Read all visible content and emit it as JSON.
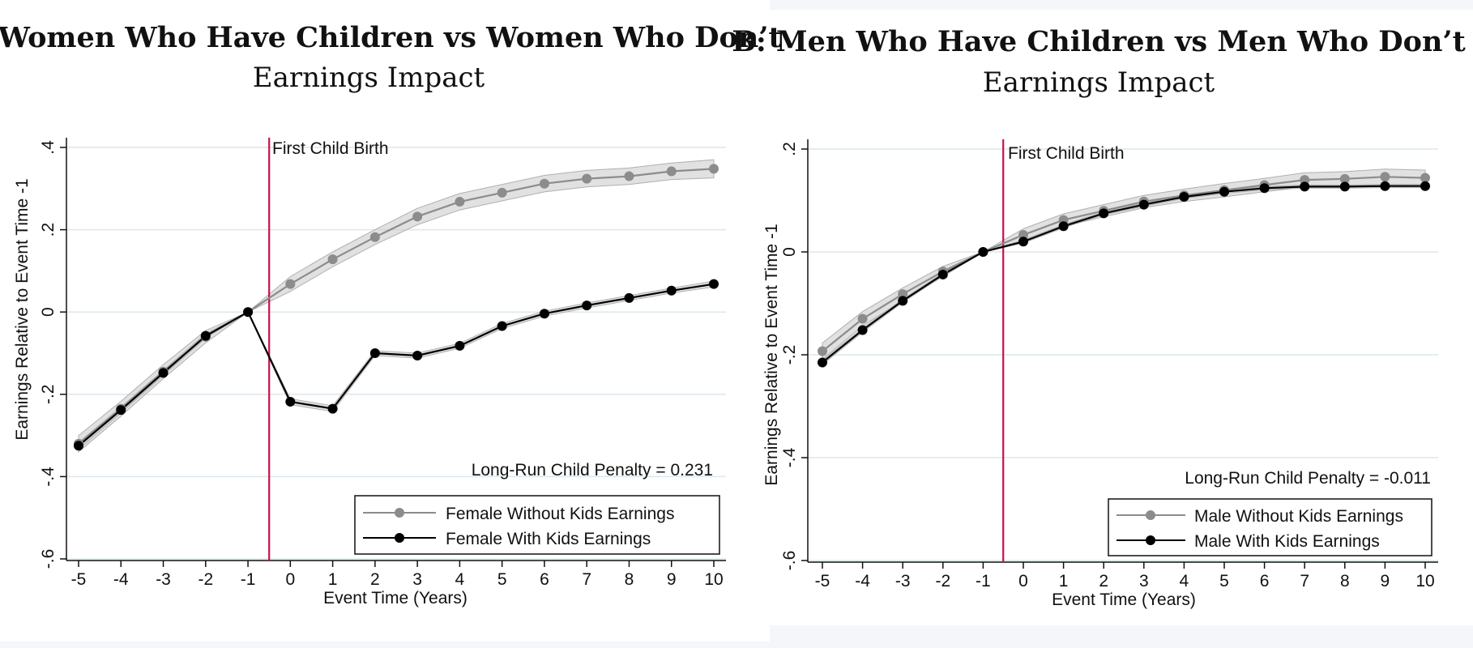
{
  "colors": {
    "event_line": "#c8104e",
    "without_kids": "#8c8c8c",
    "with_kids": "#000000",
    "band": "#c8c8c8"
  },
  "chart_data": [
    {
      "type": "line",
      "title": "A: Women Who Have Children vs Women Who Don’t",
      "subtitle": "Earnings Impact",
      "xlabel": "Event Time (Years)",
      "ylabel": "Earnings Relative to Event Time -1",
      "x": [
        -5,
        -4,
        -3,
        -2,
        -1,
        0,
        1,
        2,
        3,
        4,
        5,
        6,
        7,
        8,
        9,
        10
      ],
      "xticks": [
        "-5",
        "-4",
        "-3",
        "-2",
        "-1",
        "0",
        "1",
        "2",
        "3",
        "4",
        "5",
        "6",
        "7",
        "8",
        "9",
        "10"
      ],
      "yticks": [
        ".4",
        ".2",
        "0",
        "-.2",
        "-.4",
        "-.6"
      ],
      "ytick_values": [
        0.4,
        0.2,
        0,
        -0.2,
        -0.4,
        -0.6
      ],
      "xlim": [
        -5,
        10
      ],
      "ylim": [
        -0.6,
        0.4
      ],
      "grid": true,
      "event_line_x": -0.5,
      "event_line_label": "First Child Birth",
      "annotation": "Long-Run Child Penalty = 0.231",
      "legend_position": "bottom-right",
      "series": [
        {
          "name": "Female Without Kids Earnings",
          "color": "#8c8c8c",
          "values": [
            -0.32,
            -0.235,
            -0.145,
            -0.06,
            0,
            0.068,
            0.128,
            0.182,
            0.232,
            0.268,
            0.29,
            0.312,
            0.324,
            0.33,
            0.342,
            0.348
          ],
          "band_halfwidth": [
            0.02,
            0.018,
            0.017,
            0.015,
            0,
            0.018,
            0.018,
            0.018,
            0.02,
            0.02,
            0.02,
            0.02,
            0.02,
            0.02,
            0.02,
            0.022
          ]
        },
        {
          "name": "Female With Kids Earnings",
          "color": "#000000",
          "values": [
            -0.325,
            -0.238,
            -0.148,
            -0.058,
            0,
            -0.218,
            -0.235,
            -0.1,
            -0.106,
            -0.082,
            -0.034,
            -0.004,
            0.016,
            0.034,
            0.052,
            0.068
          ],
          "band_halfwidth": [
            0.008,
            0.007,
            0.006,
            0.005,
            0,
            0.007,
            0.007,
            0.006,
            0.006,
            0.006,
            0.006,
            0.006,
            0.006,
            0.006,
            0.006,
            0.007
          ]
        }
      ]
    },
    {
      "type": "line",
      "title": "B: Men Who Have Children vs Men Who Don’t",
      "subtitle": "Earnings Impact",
      "xlabel": "Event Time (Years)",
      "ylabel": "Earnings Relative to Event Time -1",
      "x": [
        -5,
        -4,
        -3,
        -2,
        -1,
        0,
        1,
        2,
        3,
        4,
        5,
        6,
        7,
        8,
        9,
        10
      ],
      "xticks": [
        "-5",
        "-4",
        "-3",
        "-2",
        "-1",
        "0",
        "1",
        "2",
        "3",
        "4",
        "5",
        "6",
        "7",
        "8",
        "9",
        "10"
      ],
      "yticks": [
        ".2",
        "0",
        "-.2",
        "-.4",
        "-.6"
      ],
      "ytick_values": [
        0.2,
        0,
        -0.2,
        -0.4,
        -0.6
      ],
      "xlim": [
        -5,
        10
      ],
      "ylim": [
        -0.6,
        0.2
      ],
      "grid": true,
      "event_line_x": -0.5,
      "event_line_label": "First Child Birth",
      "annotation": "Long-Run Child Penalty = -0.011",
      "legend_position": "bottom-right",
      "series": [
        {
          "name": "Male Without Kids Earnings",
          "color": "#8c8c8c",
          "values": [
            -0.193,
            -0.13,
            -0.082,
            -0.038,
            0,
            0.033,
            0.062,
            0.08,
            0.098,
            0.11,
            0.12,
            0.13,
            0.14,
            0.142,
            0.146,
            0.144
          ],
          "band_halfwidth": [
            0.016,
            0.014,
            0.012,
            0.01,
            0,
            0.012,
            0.012,
            0.012,
            0.012,
            0.012,
            0.013,
            0.013,
            0.014,
            0.014,
            0.015,
            0.015
          ]
        },
        {
          "name": "Male With Kids Earnings",
          "color": "#000000",
          "values": [
            -0.215,
            -0.152,
            -0.095,
            -0.044,
            0,
            0.02,
            0.05,
            0.075,
            0.092,
            0.107,
            0.117,
            0.124,
            0.127,
            0.127,
            0.128,
            0.128
          ],
          "band_halfwidth": [
            0.004,
            0.004,
            0.003,
            0.003,
            0,
            0.003,
            0.003,
            0.003,
            0.003,
            0.003,
            0.003,
            0.003,
            0.003,
            0.003,
            0.003,
            0.003
          ]
        }
      ]
    }
  ]
}
